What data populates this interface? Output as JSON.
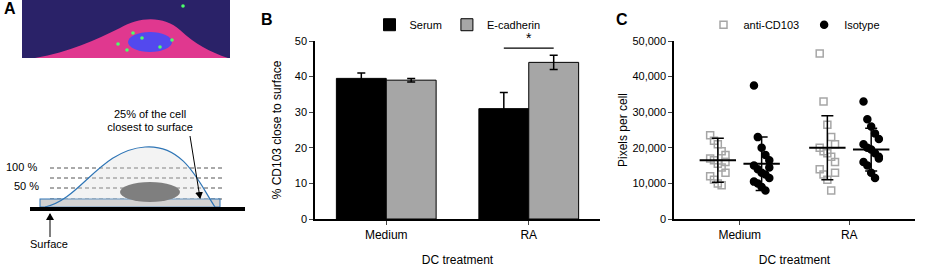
{
  "diagram": {
    "panel_label": "A",
    "annotation": [
      "25% of the cell",
      "closest to surface"
    ],
    "levels": [
      "100 %",
      "50 %"
    ],
    "surface_label": "Surface"
  },
  "chart_data": [
    {
      "panel_label": "B",
      "type": "bar",
      "categories": [
        "Medium",
        "RA"
      ],
      "series": [
        {
          "name": "Serum",
          "color": "#000000",
          "values": [
            39.5,
            31
          ],
          "errors": [
            1.5,
            4.5
          ]
        },
        {
          "name": "E-cadherin",
          "color": "#a6a6a6",
          "values": [
            39,
            44
          ],
          "errors": [
            0.5,
            2
          ]
        }
      ],
      "ylim": [
        0,
        50
      ],
      "yticks": [
        0,
        10,
        20,
        30,
        40,
        50
      ],
      "y_label": "% CD103 close to surface",
      "x_label": "DC treatment",
      "legend": "top",
      "annotations": [
        {
          "text": "*",
          "category": "RA"
        }
      ]
    },
    {
      "panel_label": "C",
      "type": "scatter",
      "categories": [
        "Medium",
        "RA"
      ],
      "series": [
        {
          "name": "anti-CD103",
          "color": "#a6a6a6",
          "marker": "square-open",
          "values": [
            [
              23500,
              22000,
              21000,
              19000,
              18000,
              17000,
              16500,
              15500,
              14500,
              13000,
              12000,
              11000,
              10000,
              9500,
              16000
            ],
            [
              46500,
              33000,
              26500,
              23000,
              21000,
              20000,
              19000,
              18500,
              17500,
              16000,
              14000,
              12500,
              11000,
              8000,
              13000
            ]
          ],
          "mean": [
            16500,
            20000
          ],
          "sd": [
            6200,
            9000
          ]
        },
        {
          "name": "Isotype",
          "color": "#000000",
          "marker": "circle",
          "values": [
            [
              37500,
              23000,
              20000,
              18000,
              16500,
              15000,
              14000,
              13000,
              12500,
              11500,
              10500,
              10000,
              9000,
              8000,
              14500
            ],
            [
              33000,
              28000,
              26000,
              24000,
              22500,
              21000,
              20000,
              19500,
              18500,
              17000,
              16000,
              15000,
              13000,
              11500,
              17500
            ]
          ],
          "mean": [
            15500,
            19500
          ],
          "sd": [
            7500,
            6000
          ]
        }
      ],
      "ylim": [
        0,
        50000
      ],
      "yticks": [
        0,
        {
          "value": 10000,
          "label": "10,000"
        },
        {
          "value": 20000,
          "label": "20,000"
        },
        {
          "value": 30000,
          "label": "30,000"
        },
        {
          "value": 40000,
          "label": "40,000"
        },
        {
          "value": 50000,
          "label": "50,000"
        }
      ],
      "y_label": "Pixels per cell",
      "x_label": "DC treatment",
      "legend": "top"
    }
  ]
}
